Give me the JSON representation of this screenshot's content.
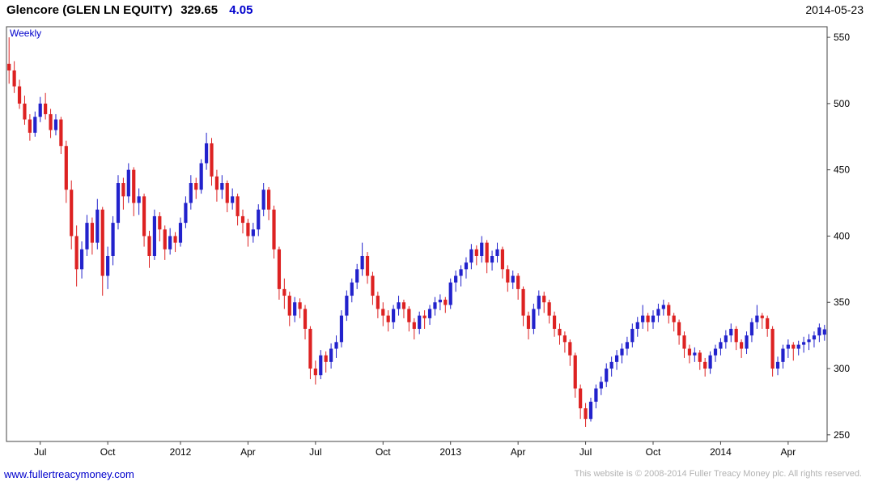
{
  "header": {
    "instrument": "Glencore (GLEN LN EQUITY)",
    "last_price": "329.65",
    "change": "4.05",
    "date": "2014-05-23"
  },
  "chart": {
    "frequency_label": "Weekly"
  },
  "footer": {
    "link": "www.fullertreacymoney.com",
    "copyright": "This website is © 2008-2014 Fuller Treacy Money plc. All rights reserved."
  },
  "colors": {
    "accent_blue": "#0000cc",
    "up_candle": "#2222cc",
    "down_candle": "#dd2222",
    "copyright_gray": "#b3b3b3"
  },
  "chart_data": {
    "type": "candlestick",
    "title": "Glencore (GLEN LN EQUITY)",
    "frequency": "Weekly",
    "start": "2011-05",
    "end": "2014-05-23",
    "ylim": [
      245,
      558
    ],
    "y_ticks": [
      250,
      300,
      350,
      400,
      450,
      500,
      550
    ],
    "x_labels": [
      {
        "label": "Jul",
        "week": 7
      },
      {
        "label": "Oct",
        "week": 20
      },
      {
        "label": "2012",
        "week": 34
      },
      {
        "label": "Apr",
        "week": 47
      },
      {
        "label": "Jul",
        "week": 60
      },
      {
        "label": "Oct",
        "week": 73
      },
      {
        "label": "2013",
        "week": 86
      },
      {
        "label": "Apr",
        "week": 99
      },
      {
        "label": "Jul",
        "week": 112
      },
      {
        "label": "Oct",
        "week": 125
      },
      {
        "label": "2014",
        "week": 138
      },
      {
        "label": "Apr",
        "week": 151
      }
    ],
    "up_color": "#2222cc",
    "down_color": "#dd2222",
    "candles_format": [
      "open",
      "high",
      "low",
      "close"
    ],
    "candles": [
      [
        530,
        550,
        515,
        525
      ],
      [
        525,
        532,
        508,
        513
      ],
      [
        513,
        518,
        496,
        500
      ],
      [
        500,
        506,
        484,
        488
      ],
      [
        488,
        492,
        472,
        478
      ],
      [
        478,
        494,
        475,
        490
      ],
      [
        490,
        505,
        486,
        500
      ],
      [
        500,
        508,
        488,
        492
      ],
      [
        492,
        496,
        474,
        480
      ],
      [
        480,
        492,
        476,
        488
      ],
      [
        488,
        490,
        462,
        468
      ],
      [
        468,
        472,
        425,
        435
      ],
      [
        435,
        442,
        390,
        400
      ],
      [
        400,
        408,
        362,
        375
      ],
      [
        375,
        396,
        368,
        390
      ],
      [
        390,
        416,
        385,
        410
      ],
      [
        410,
        414,
        386,
        395
      ],
      [
        395,
        428,
        390,
        420
      ],
      [
        420,
        422,
        355,
        370
      ],
      [
        370,
        392,
        360,
        385
      ],
      [
        385,
        415,
        378,
        410
      ],
      [
        410,
        446,
        405,
        440
      ],
      [
        440,
        444,
        420,
        430
      ],
      [
        430,
        455,
        425,
        450
      ],
      [
        450,
        452,
        415,
        425
      ],
      [
        425,
        436,
        416,
        430
      ],
      [
        430,
        432,
        392,
        400
      ],
      [
        400,
        404,
        376,
        385
      ],
      [
        385,
        420,
        382,
        415
      ],
      [
        415,
        418,
        396,
        405
      ],
      [
        405,
        408,
        382,
        390
      ],
      [
        390,
        406,
        386,
        400
      ],
      [
        400,
        403,
        388,
        395
      ],
      [
        395,
        414,
        392,
        410
      ],
      [
        410,
        430,
        406,
        425
      ],
      [
        425,
        446,
        420,
        440
      ],
      [
        440,
        444,
        428,
        435
      ],
      [
        435,
        458,
        432,
        455
      ],
      [
        455,
        478,
        450,
        470
      ],
      [
        470,
        474,
        438,
        445
      ],
      [
        445,
        450,
        426,
        435
      ],
      [
        435,
        446,
        428,
        440
      ],
      [
        440,
        442,
        418,
        425
      ],
      [
        425,
        436,
        420,
        430
      ],
      [
        430,
        432,
        408,
        415
      ],
      [
        415,
        420,
        402,
        410
      ],
      [
        410,
        413,
        392,
        400
      ],
      [
        400,
        410,
        395,
        405
      ],
      [
        405,
        424,
        400,
        420
      ],
      [
        420,
        440,
        415,
        435
      ],
      [
        435,
        437,
        412,
        420
      ],
      [
        420,
        423,
        383,
        390
      ],
      [
        390,
        392,
        352,
        360
      ],
      [
        360,
        368,
        345,
        355
      ],
      [
        355,
        358,
        332,
        340
      ],
      [
        340,
        354,
        335,
        350
      ],
      [
        350,
        353,
        338,
        345
      ],
      [
        345,
        348,
        322,
        330
      ],
      [
        330,
        332,
        292,
        300
      ],
      [
        300,
        306,
        288,
        295
      ],
      [
        295,
        314,
        292,
        310
      ],
      [
        310,
        313,
        297,
        305
      ],
      [
        305,
        319,
        300,
        315
      ],
      [
        315,
        325,
        308,
        320
      ],
      [
        320,
        344,
        316,
        340
      ],
      [
        340,
        359,
        336,
        355
      ],
      [
        355,
        368,
        350,
        365
      ],
      [
        365,
        379,
        360,
        375
      ],
      [
        375,
        395,
        370,
        385
      ],
      [
        385,
        388,
        364,
        370
      ],
      [
        370,
        373,
        348,
        355
      ],
      [
        355,
        358,
        338,
        345
      ],
      [
        345,
        350,
        332,
        340
      ],
      [
        340,
        344,
        328,
        335
      ],
      [
        335,
        348,
        330,
        345
      ],
      [
        345,
        355,
        340,
        350
      ],
      [
        350,
        352,
        338,
        345
      ],
      [
        345,
        347,
        328,
        335
      ],
      [
        335,
        338,
        322,
        330
      ],
      [
        330,
        343,
        326,
        340
      ],
      [
        340,
        344,
        330,
        338
      ],
      [
        338,
        348,
        333,
        345
      ],
      [
        345,
        354,
        340,
        350
      ],
      [
        350,
        356,
        344,
        352
      ],
      [
        352,
        354,
        342,
        348
      ],
      [
        348,
        368,
        345,
        365
      ],
      [
        365,
        374,
        358,
        370
      ],
      [
        370,
        378,
        362,
        375
      ],
      [
        375,
        384,
        368,
        380
      ],
      [
        380,
        394,
        375,
        390
      ],
      [
        390,
        393,
        378,
        385
      ],
      [
        385,
        400,
        380,
        395
      ],
      [
        395,
        397,
        372,
        380
      ],
      [
        380,
        389,
        374,
        385
      ],
      [
        385,
        395,
        380,
        390
      ],
      [
        390,
        392,
        368,
        375
      ],
      [
        375,
        378,
        358,
        365
      ],
      [
        365,
        374,
        360,
        370
      ],
      [
        370,
        372,
        352,
        360
      ],
      [
        360,
        362,
        332,
        340
      ],
      [
        340,
        343,
        322,
        330
      ],
      [
        330,
        349,
        326,
        345
      ],
      [
        345,
        359,
        340,
        355
      ],
      [
        355,
        358,
        342,
        350
      ],
      [
        350,
        352,
        334,
        340
      ],
      [
        340,
        343,
        324,
        330
      ],
      [
        330,
        334,
        318,
        325
      ],
      [
        325,
        328,
        312,
        320
      ],
      [
        320,
        322,
        302,
        310
      ],
      [
        310,
        312,
        278,
        285
      ],
      [
        285,
        288,
        262,
        270
      ],
      [
        270,
        274,
        256,
        262
      ],
      [
        262,
        278,
        260,
        275
      ],
      [
        275,
        288,
        270,
        285
      ],
      [
        285,
        294,
        280,
        290
      ],
      [
        290,
        304,
        286,
        300
      ],
      [
        300,
        309,
        294,
        305
      ],
      [
        305,
        314,
        299,
        310
      ],
      [
        310,
        319,
        304,
        315
      ],
      [
        315,
        324,
        310,
        320
      ],
      [
        320,
        334,
        316,
        330
      ],
      [
        330,
        339,
        324,
        335
      ],
      [
        335,
        348,
        330,
        340
      ],
      [
        340,
        342,
        328,
        335
      ],
      [
        335,
        344,
        330,
        340
      ],
      [
        340,
        349,
        335,
        345
      ],
      [
        345,
        352,
        340,
        348
      ],
      [
        348,
        350,
        334,
        340
      ],
      [
        340,
        342,
        328,
        335
      ],
      [
        335,
        337,
        318,
        325
      ],
      [
        325,
        328,
        308,
        315
      ],
      [
        315,
        318,
        304,
        310
      ],
      [
        310,
        316,
        305,
        312
      ],
      [
        312,
        314,
        299,
        305
      ],
      [
        305,
        308,
        294,
        300
      ],
      [
        300,
        313,
        296,
        310
      ],
      [
        310,
        318,
        305,
        315
      ],
      [
        315,
        323,
        310,
        320
      ],
      [
        320,
        329,
        315,
        325
      ],
      [
        325,
        334,
        320,
        330
      ],
      [
        330,
        332,
        314,
        320
      ],
      [
        320,
        322,
        308,
        315
      ],
      [
        315,
        328,
        311,
        325
      ],
      [
        325,
        338,
        320,
        335
      ],
      [
        335,
        348,
        330,
        340
      ],
      [
        340,
        342,
        330,
        338
      ],
      [
        338,
        340,
        324,
        330
      ],
      [
        330,
        332,
        294,
        300
      ],
      [
        300,
        309,
        295,
        305
      ],
      [
        305,
        318,
        300,
        315
      ],
      [
        315,
        322,
        308,
        318
      ],
      [
        318,
        320,
        306,
        315
      ],
      [
        315,
        321,
        310,
        318
      ],
      [
        318,
        324,
        312,
        320
      ],
      [
        320,
        326,
        314,
        322
      ],
      [
        322,
        328,
        316,
        325
      ],
      [
        325,
        334,
        320,
        331
      ],
      [
        325.6,
        333,
        321,
        329.65
      ]
    ]
  }
}
